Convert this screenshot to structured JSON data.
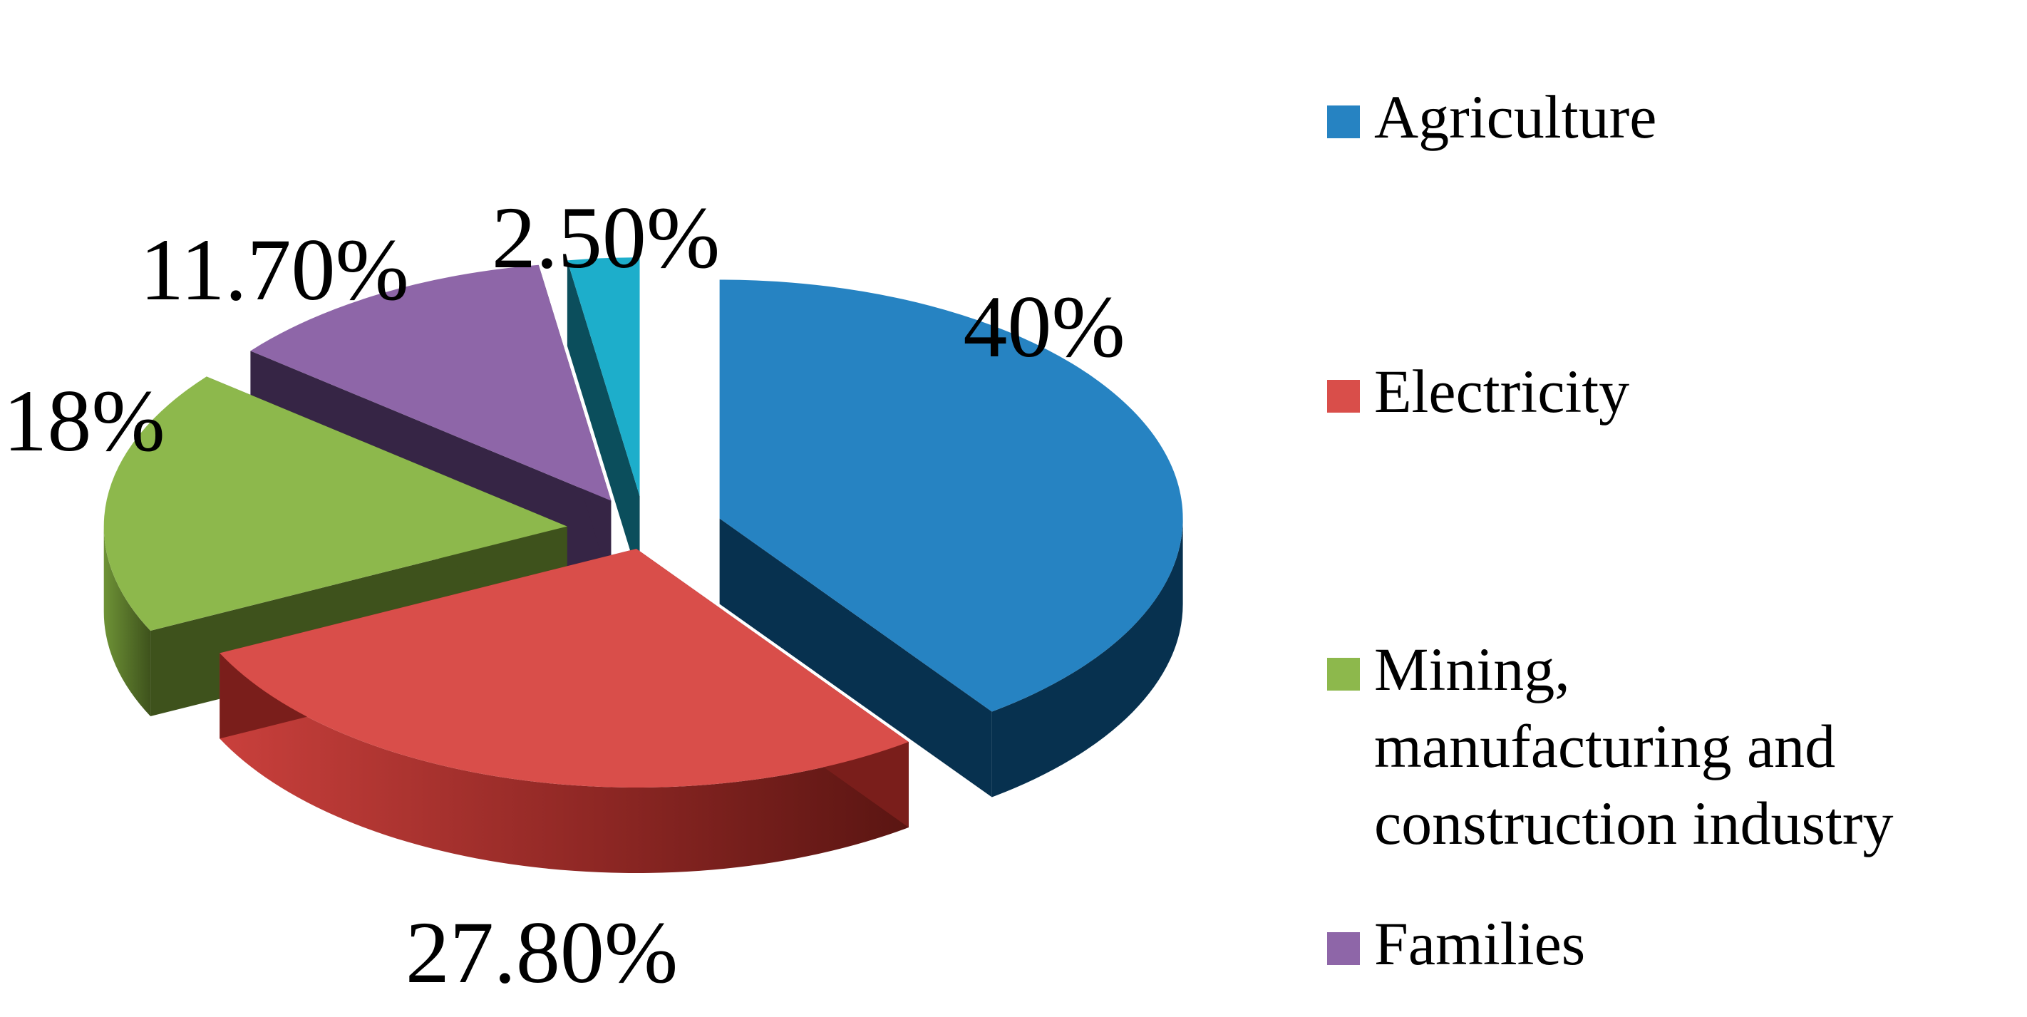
{
  "chart_data": {
    "type": "pie",
    "style": "3d-exploded",
    "title": "",
    "slices": [
      {
        "name": "Agriculture",
        "value": 40,
        "label": "40%",
        "color": "#2683C2",
        "side_color": "#07314F"
      },
      {
        "name": "Electricity",
        "value": 27.8,
        "label": "27.80%",
        "color": "#D94E4A",
        "side_color": "#7A1E1B"
      },
      {
        "name": "Mining, manufacturing and construction industry",
        "value": 18,
        "label": "18%",
        "color": "#8DB84C",
        "side_color": "#3E521C"
      },
      {
        "name": "Families",
        "value": 11.7,
        "label": "11.70%",
        "color": "#8E66A8",
        "side_color": "#362545"
      },
      {
        "name": "",
        "value": 2.5,
        "label": "2.50%",
        "color": "#1DAECB",
        "side_color": "#0B4E5C"
      }
    ],
    "legend": {
      "position": "right",
      "entries": [
        "Agriculture",
        "Electricity",
        "Mining,\nmanufacturing and\nconstruction industry",
        "Families"
      ]
    }
  }
}
